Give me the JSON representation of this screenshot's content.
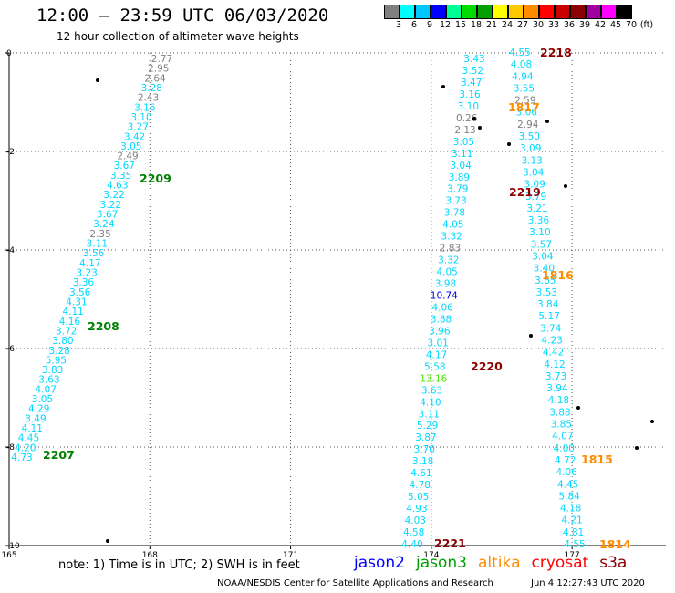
{
  "header": {
    "title": "12:00 – 23:59 UTC 06/03/2020",
    "subtitle": "12 hour collection of altimeter wave heights"
  },
  "colorbar": {
    "colors": [
      "#808080",
      "#00ffff",
      "#00c8ff",
      "#0000ff",
      "#00ff96",
      "#00dc00",
      "#00a000",
      "#ffff00",
      "#ffc800",
      "#ff8c00",
      "#ff0000",
      "#c80000",
      "#8c0000",
      "#a000a0",
      "#ff00ff",
      "#000000"
    ],
    "labels": [
      "3",
      "6",
      "9",
      "12",
      "15",
      "18",
      "21",
      "24",
      "27",
      "30",
      "33",
      "36",
      "39",
      "42",
      "45",
      "70",
      "(ft)"
    ]
  },
  "chart_data": {
    "type": "scatter",
    "xlim": [
      165,
      179
    ],
    "ylim": [
      -10,
      0
    ],
    "x_ticks": [
      "165",
      "168",
      "171",
      "174",
      "177"
    ],
    "y_ticks": [
      "0",
      "-2",
      "-4",
      "-6",
      "-8",
      "-10"
    ],
    "grid": true,
    "tracks": [
      {
        "id": "west",
        "values": [
          {
            "v": "2.77",
            "c": "#808080"
          },
          {
            "v": "2.95",
            "c": "#808080"
          },
          {
            "v": "2.64",
            "c": "#808080"
          },
          {
            "v": "3.28",
            "c": "#00d8ff"
          },
          {
            "v": "2.43",
            "c": "#808080"
          },
          {
            "v": "3.16",
            "c": "#00d8ff"
          },
          {
            "v": "3.10",
            "c": "#00d8ff"
          },
          {
            "v": "3.27",
            "c": "#00d8ff"
          },
          {
            "v": "3.42",
            "c": "#00d8ff"
          },
          {
            "v": "3.05",
            "c": "#00d8ff"
          },
          {
            "v": "2.49",
            "c": "#808080"
          },
          {
            "v": "3.67",
            "c": "#00d8ff"
          },
          {
            "v": "3.35",
            "c": "#00d8ff"
          },
          {
            "v": "4.63",
            "c": "#00d8ff"
          },
          {
            "v": "3.22",
            "c": "#00d8ff"
          },
          {
            "v": "3.22",
            "c": "#00d8ff"
          },
          {
            "v": "3.67",
            "c": "#00d8ff"
          },
          {
            "v": "3.24",
            "c": "#00d8ff"
          },
          {
            "v": "2.35",
            "c": "#808080"
          },
          {
            "v": "3.11",
            "c": "#00d8ff"
          },
          {
            "v": "3.56",
            "c": "#00d8ff"
          },
          {
            "v": "4.17",
            "c": "#00d8ff"
          },
          {
            "v": "3.23",
            "c": "#00d8ff"
          },
          {
            "v": "3.36",
            "c": "#00d8ff"
          },
          {
            "v": "3.56",
            "c": "#00d8ff"
          },
          {
            "v": "4.31",
            "c": "#00d8ff"
          },
          {
            "v": "4.11",
            "c": "#00d8ff"
          },
          {
            "v": "4.16",
            "c": "#00d8ff"
          },
          {
            "v": "3.72",
            "c": "#00d8ff"
          },
          {
            "v": "3.80",
            "c": "#00d8ff"
          },
          {
            "v": "3.28",
            "c": "#00d8ff"
          },
          {
            "v": "5.95",
            "c": "#00d8ff"
          },
          {
            "v": "3.83",
            "c": "#00d8ff"
          },
          {
            "v": "3.63",
            "c": "#00d8ff"
          },
          {
            "v": "4.07",
            "c": "#00d8ff"
          },
          {
            "v": "3.05",
            "c": "#00d8ff"
          },
          {
            "v": "4.29",
            "c": "#00d8ff"
          },
          {
            "v": "3.49",
            "c": "#00d8ff"
          },
          {
            "v": "4.11",
            "c": "#00d8ff"
          },
          {
            "v": "4.45",
            "c": "#00d8ff"
          },
          {
            "v": "4.20",
            "c": "#00d8ff"
          },
          {
            "v": "4.73",
            "c": "#00d8ff"
          }
        ]
      },
      {
        "id": "mid-a",
        "values": [
          {
            "v": "3.43",
            "c": "#00d8ff"
          },
          {
            "v": "3.52",
            "c": "#00d8ff"
          },
          {
            "v": "3.47",
            "c": "#00d8ff"
          },
          {
            "v": "3.16",
            "c": "#00d8ff"
          },
          {
            "v": "3.10",
            "c": "#00d8ff"
          },
          {
            "v": "0.26",
            "c": "#808080"
          },
          {
            "v": "2.13",
            "c": "#808080"
          },
          {
            "v": "3.05",
            "c": "#00d8ff"
          },
          {
            "v": "3.11",
            "c": "#00d8ff"
          },
          {
            "v": "3.04",
            "c": "#00d8ff"
          },
          {
            "v": "3.89",
            "c": "#00d8ff"
          },
          {
            "v": "3.79",
            "c": "#00d8ff"
          },
          {
            "v": "3.73",
            "c": "#00d8ff"
          },
          {
            "v": "3.78",
            "c": "#00d8ff"
          },
          {
            "v": "4.05",
            "c": "#00d8ff"
          },
          {
            "v": "3.32",
            "c": "#00d8ff"
          },
          {
            "v": "2.83",
            "c": "#808080"
          },
          {
            "v": "3.32",
            "c": "#00d8ff"
          },
          {
            "v": "4.05",
            "c": "#00d8ff"
          },
          {
            "v": "3.98",
            "c": "#00d8ff"
          },
          {
            "v": "10.74",
            "c": "#0000dd"
          },
          {
            "v": "4.06",
            "c": "#00d8ff"
          },
          {
            "v": "3.88",
            "c": "#00d8ff"
          },
          {
            "v": "3.96",
            "c": "#00d8ff"
          },
          {
            "v": "3.01",
            "c": "#00d8ff"
          },
          {
            "v": "4.17",
            "c": "#00d8ff"
          },
          {
            "v": "5.58",
            "c": "#00d8ff"
          },
          {
            "v": "13.16",
            "c": "#4ce600"
          },
          {
            "v": "3.63",
            "c": "#00d8ff"
          },
          {
            "v": "4.10",
            "c": "#00d8ff"
          },
          {
            "v": "3.11",
            "c": "#00d8ff"
          },
          {
            "v": "5.29",
            "c": "#00d8ff"
          },
          {
            "v": "3.87",
            "c": "#00d8ff"
          },
          {
            "v": "3.70",
            "c": "#00d8ff"
          },
          {
            "v": "3.18",
            "c": "#00d8ff"
          },
          {
            "v": "4.61",
            "c": "#00d8ff"
          },
          {
            "v": "4.78",
            "c": "#00d8ff"
          },
          {
            "v": "5.05",
            "c": "#00d8ff"
          },
          {
            "v": "4.93",
            "c": "#00d8ff"
          },
          {
            "v": "4.03",
            "c": "#00d8ff"
          },
          {
            "v": "4.58",
            "c": "#00d8ff"
          },
          {
            "v": "4.40",
            "c": "#00d8ff"
          }
        ]
      },
      {
        "id": "mid-b",
        "values": [
          {
            "v": "4.55",
            "c": "#00d8ff"
          },
          {
            "v": "4.08",
            "c": "#00d8ff"
          },
          {
            "v": "4.94",
            "c": "#00d8ff"
          },
          {
            "v": "3.55",
            "c": "#00d8ff"
          },
          {
            "v": "2.59",
            "c": "#808080"
          },
          {
            "v": "3.06",
            "c": "#00d8ff"
          },
          {
            "v": "2.94",
            "c": "#808080"
          },
          {
            "v": "3.50",
            "c": "#00d8ff"
          },
          {
            "v": "3.09",
            "c": "#00d8ff"
          },
          {
            "v": "3.13",
            "c": "#00d8ff"
          },
          {
            "v": "3.04",
            "c": "#00d8ff"
          },
          {
            "v": "3.09",
            "c": "#00d8ff"
          },
          {
            "v": "3.79",
            "c": "#00d8ff"
          },
          {
            "v": "3.21",
            "c": "#00d8ff"
          },
          {
            "v": "3.36",
            "c": "#00d8ff"
          },
          {
            "v": "3.10",
            "c": "#00d8ff"
          },
          {
            "v": "3.57",
            "c": "#00d8ff"
          },
          {
            "v": "3.04",
            "c": "#00d8ff"
          },
          {
            "v": "3.40",
            "c": "#00d8ff"
          },
          {
            "v": "3.65",
            "c": "#00d8ff"
          },
          {
            "v": "3.53",
            "c": "#00d8ff"
          },
          {
            "v": "3.84",
            "c": "#00d8ff"
          },
          {
            "v": "5.17",
            "c": "#00d8ff"
          },
          {
            "v": "3.74",
            "c": "#00d8ff"
          },
          {
            "v": "4.23",
            "c": "#00d8ff"
          },
          {
            "v": "4.42",
            "c": "#00d8ff"
          },
          {
            "v": "4.12",
            "c": "#00d8ff"
          },
          {
            "v": "3.73",
            "c": "#00d8ff"
          },
          {
            "v": "3.94",
            "c": "#00d8ff"
          },
          {
            "v": "4.18",
            "c": "#00d8ff"
          },
          {
            "v": "3.88",
            "c": "#00d8ff"
          },
          {
            "v": "3.85",
            "c": "#00d8ff"
          },
          {
            "v": "4.07",
            "c": "#00d8ff"
          },
          {
            "v": "4.00",
            "c": "#00d8ff"
          },
          {
            "v": "4.72",
            "c": "#00d8ff"
          },
          {
            "v": "4.06",
            "c": "#00d8ff"
          },
          {
            "v": "4.45",
            "c": "#00d8ff"
          },
          {
            "v": "5.84",
            "c": "#00d8ff"
          },
          {
            "v": "4.18",
            "c": "#00d8ff"
          },
          {
            "v": "4.21",
            "c": "#00d8ff"
          },
          {
            "v": "4.81",
            "c": "#00d8ff"
          },
          {
            "v": "4.55",
            "c": "#00d8ff"
          }
        ]
      }
    ],
    "time_labels": [
      {
        "t": "2209",
        "c": "#008000"
      },
      {
        "t": "2208",
        "c": "#008000"
      },
      {
        "t": "2207",
        "c": "#008000"
      },
      {
        "t": "2218",
        "c": "#8b0000"
      },
      {
        "t": "2219",
        "c": "#8b0000"
      },
      {
        "t": "2220",
        "c": "#8b0000"
      },
      {
        "t": "2221",
        "c": "#8b0000"
      },
      {
        "t": "1817",
        "c": "#ff8c00"
      },
      {
        "t": "1816",
        "c": "#ff8c00"
      },
      {
        "t": "1815",
        "c": "#ff8c00"
      },
      {
        "t": "1814",
        "c": "#ff8c00"
      }
    ]
  },
  "note": "note: 1) Time is in UTC; 2) SWH is in feet",
  "satellites": [
    {
      "name": "jason2",
      "color": "#0000ff"
    },
    {
      "name": "jason3",
      "color": "#00a000"
    },
    {
      "name": "altika",
      "color": "#ff8c00"
    },
    {
      "name": "cryosat",
      "color": "#ff0000"
    },
    {
      "name": "s3a",
      "color": "#8b0000"
    }
  ],
  "footer": {
    "credit": "NOAA/NESDIS Center for Satellite Applications and Research",
    "timestamp": "Jun  4 12:27:43 UTC 2020"
  }
}
